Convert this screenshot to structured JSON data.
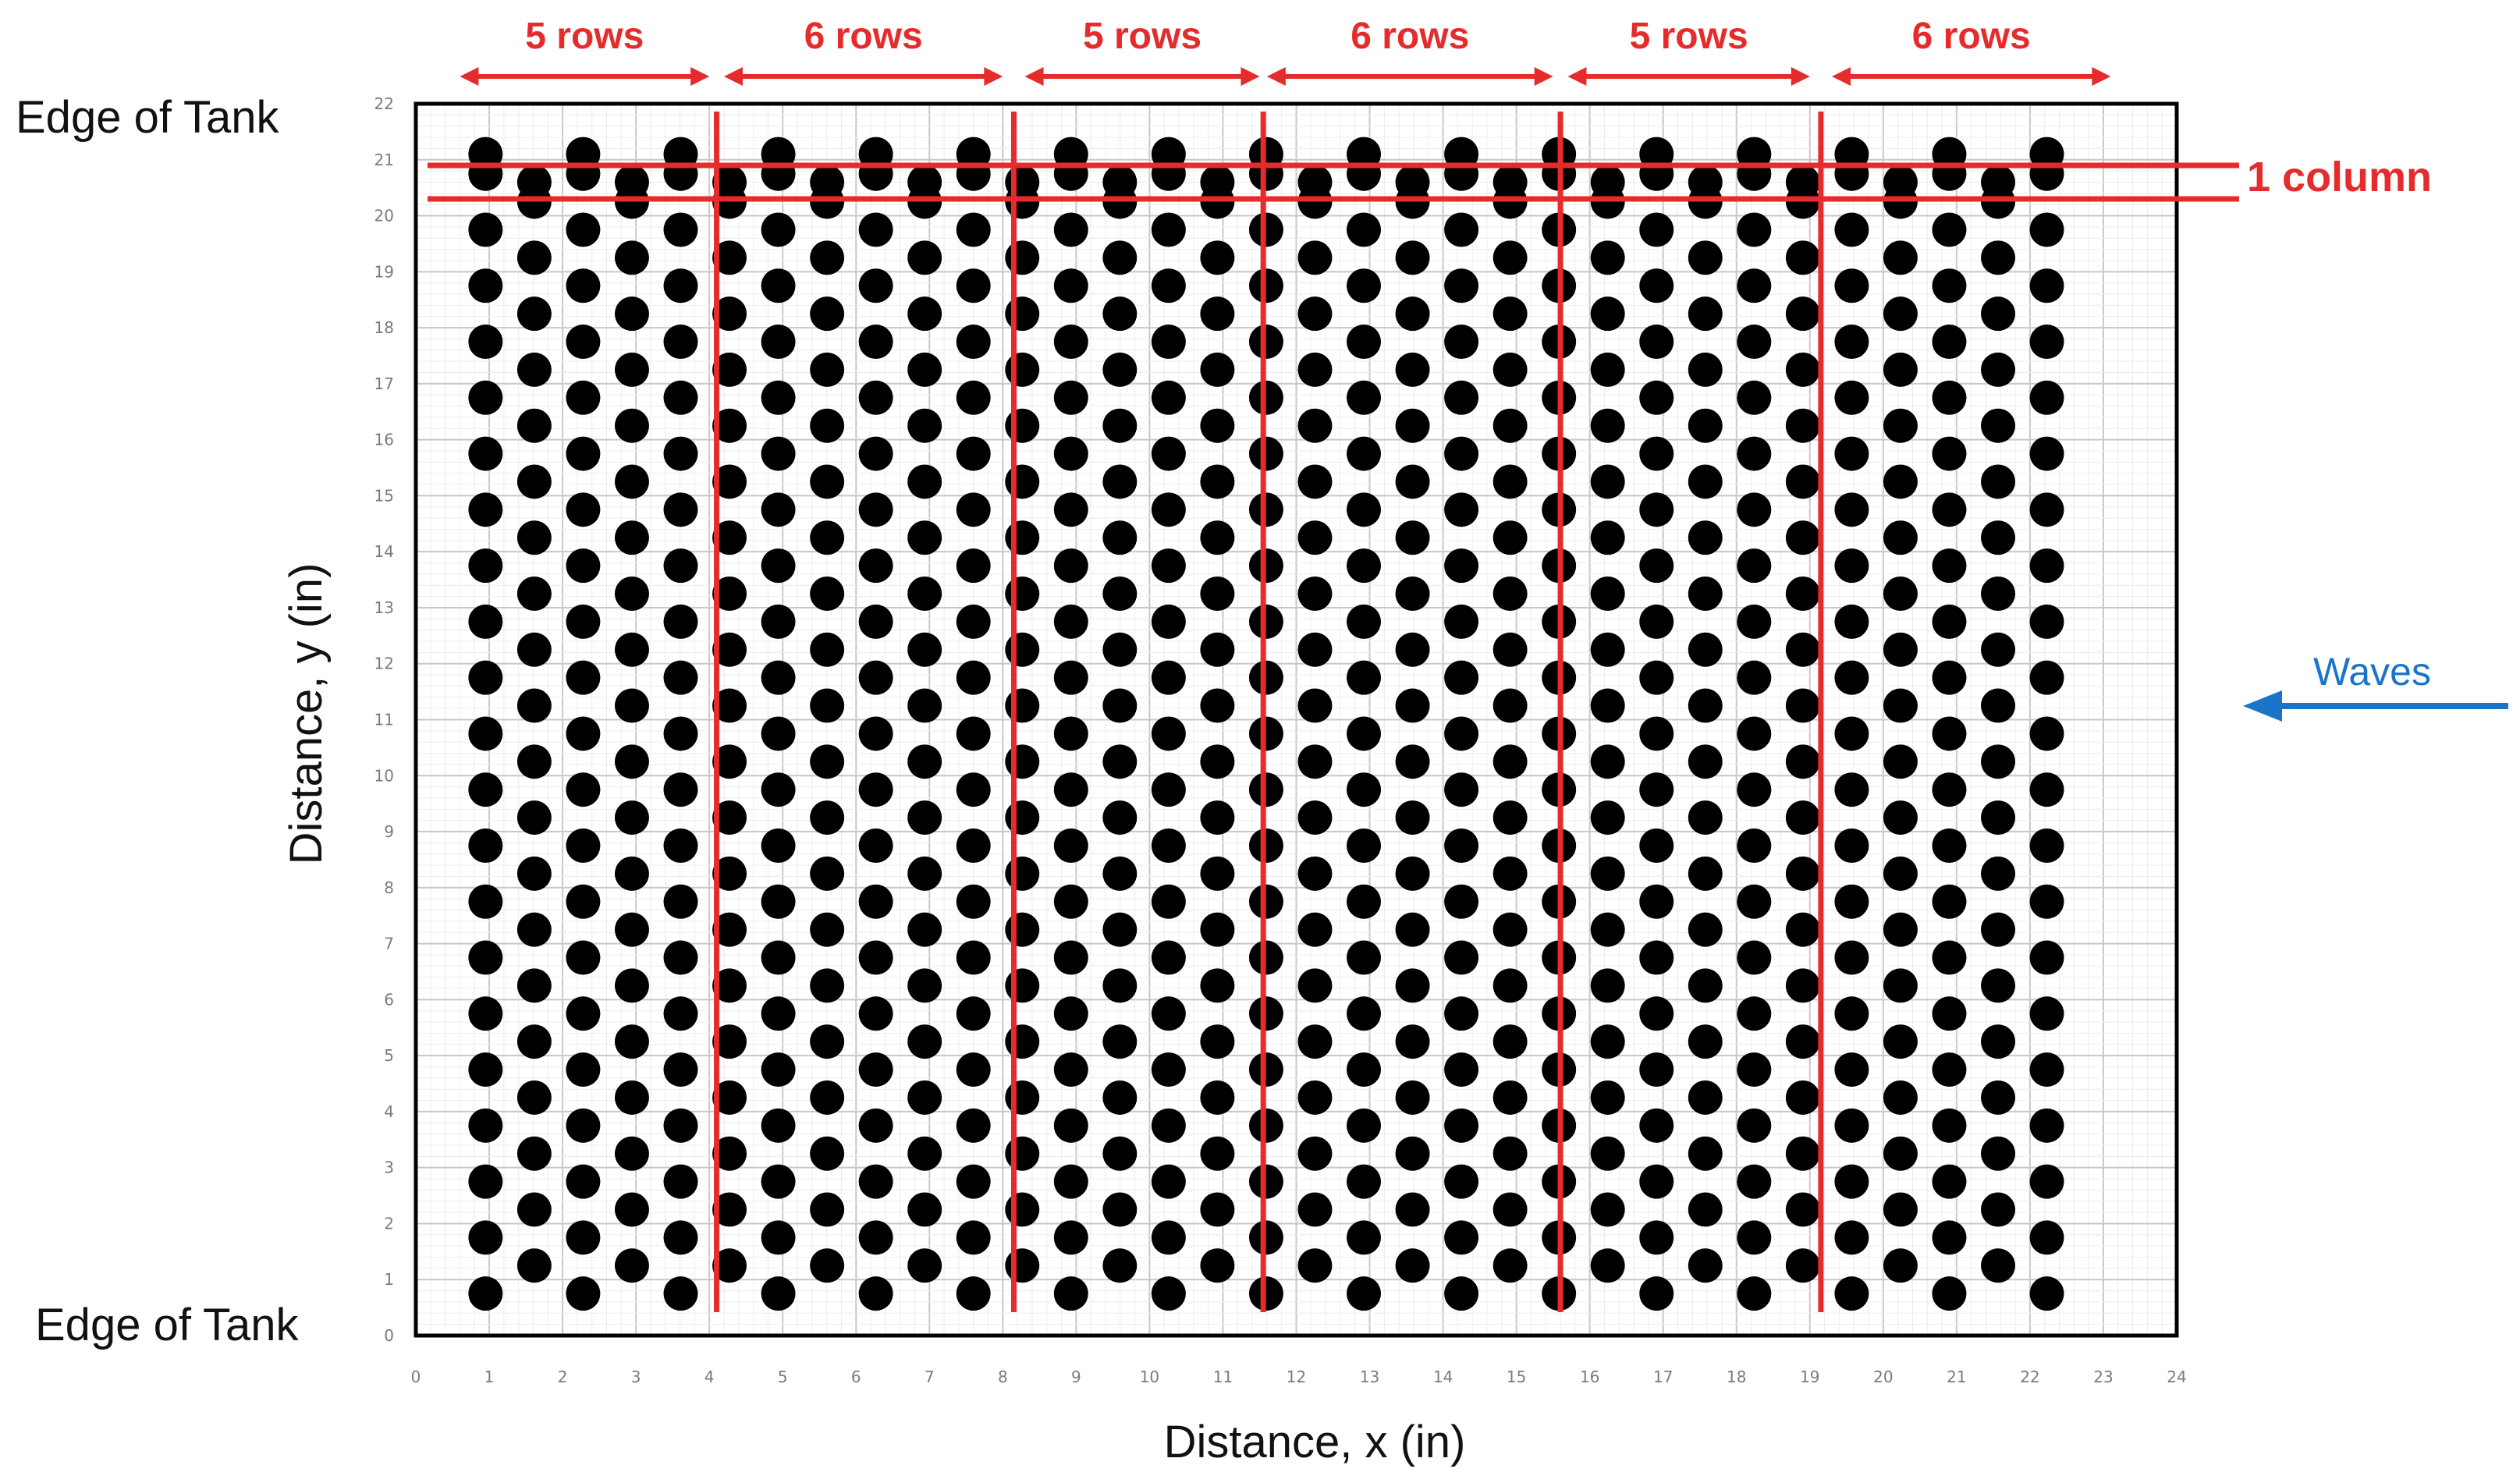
{
  "colors": {
    "annotation": "#e52b2b",
    "waves": "#1a75c9",
    "piles": "#000000",
    "grid": "#d9d9d9",
    "frame": "#000000"
  },
  "labels": {
    "edge_top": "Edge of Tank",
    "edge_bottom": "Edge of Tank",
    "one_column": "1 column",
    "waves": "Waves"
  },
  "chart_data": {
    "type": "scatter",
    "xlabel": "Distance, x (in)",
    "ylabel": "Distance, y (in)",
    "xlim": [
      0,
      24
    ],
    "ylim": [
      0,
      22
    ],
    "xticks": [
      "0",
      "1",
      "2",
      "3",
      "4",
      "5",
      "6",
      "7",
      "8",
      "9",
      "10",
      "11",
      "12",
      "13",
      "14",
      "15",
      "16",
      "17",
      "18",
      "19",
      "20",
      "21",
      "22",
      "23",
      "24"
    ],
    "yticks": [
      "0",
      "1",
      "2",
      "3",
      "4",
      "5",
      "6",
      "7",
      "8",
      "9",
      "10",
      "11",
      "12",
      "13",
      "14",
      "15",
      "16",
      "17",
      "18",
      "19",
      "20",
      "21",
      "22"
    ],
    "grid": true,
    "piles": {
      "columns_x": [
        1,
        1.7,
        2.4,
        3.1,
        3.8,
        4.5,
        5.2,
        5.9,
        6.6,
        7.3,
        8.0,
        8.7,
        9.4,
        10.1,
        10.8,
        11.5,
        12.2,
        12.9,
        13.6,
        14.3,
        15.0,
        15.7,
        16.4,
        17.1,
        17.8,
        18.5,
        19.2,
        19.9,
        20.6,
        21.3,
        22.0,
        22.7,
        23.4
      ],
      "column_x_scale": 0.95,
      "column_x_offset": 0.0,
      "odd_columns_y": [
        0.75,
        1.75,
        2.75,
        3.75,
        4.75,
        5.75,
        6.75,
        7.75,
        8.75,
        9.75,
        10.75,
        11.75,
        12.75,
        13.75,
        14.75,
        15.75,
        16.75,
        17.75,
        18.75,
        19.75,
        20.75,
        21.1
      ],
      "even_columns_y": [
        1.25,
        2.25,
        3.25,
        4.25,
        5.25,
        6.25,
        7.25,
        8.25,
        9.25,
        10.25,
        11.25,
        12.25,
        13.25,
        14.25,
        15.25,
        16.25,
        17.25,
        18.25,
        19.25,
        20.25,
        20.6
      ]
    },
    "row_groups": [
      {
        "label": "5 rows",
        "x_start": 0.6,
        "x_end": 4.0
      },
      {
        "label": "6 rows",
        "x_start": 4.2,
        "x_end": 8.0
      },
      {
        "label": "5 rows",
        "x_start": 8.3,
        "x_end": 11.5
      },
      {
        "label": "6 rows",
        "x_start": 11.6,
        "x_end": 15.5
      },
      {
        "label": "5 rows",
        "x_start": 15.7,
        "x_end": 19.0
      },
      {
        "label": "6 rows",
        "x_start": 19.3,
        "x_end": 23.1
      }
    ],
    "dividers_x": [
      4.1,
      8.15,
      11.55,
      15.6,
      19.15
    ],
    "column_band_y": [
      20.3,
      20.9
    ]
  }
}
